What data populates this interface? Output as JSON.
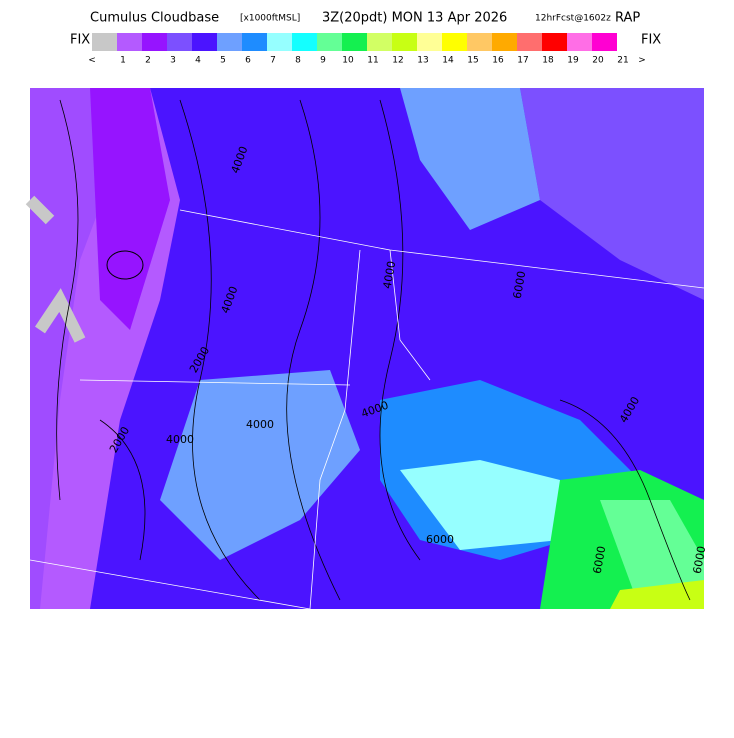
{
  "header": {
    "title": "Cumulus Cloudbase",
    "units": "[x1000ftMSL]",
    "time": "3Z(20pdt) MON 13 Apr 2026",
    "forecast": "12hrFcst@1602z",
    "model": "RAP"
  },
  "legend": {
    "left": "FIX",
    "right": "FIX",
    "colors": [
      "#c8c8c8",
      "#b45aff",
      "#9614ff",
      "#7c50ff",
      "#4b14ff",
      "#6ea0ff",
      "#1e8cff",
      "#96ffff",
      "#14ffff",
      "#64ff96",
      "#14f050",
      "#d2ff64",
      "#c8ff14",
      "#ffff96",
      "#ffff00",
      "#ffc864",
      "#ffaa00",
      "#ff6e6e",
      "#ff0000",
      "#ff6ee6",
      "#ff00d2"
    ],
    "labels": [
      "<",
      "1",
      "2",
      "3",
      "4",
      "5",
      "6",
      "7",
      "8",
      "9",
      "10",
      "11",
      "12",
      "13",
      "14",
      "15",
      "16",
      "17",
      "18",
      "19",
      "20",
      "21",
      ">"
    ]
  },
  "map": {
    "contour_labels": [
      "4000",
      "4000",
      "2000",
      "4000",
      "4000",
      "4000",
      "2000",
      "6000",
      "4000",
      "6000",
      "6000",
      "6000",
      "4000"
    ]
  }
}
